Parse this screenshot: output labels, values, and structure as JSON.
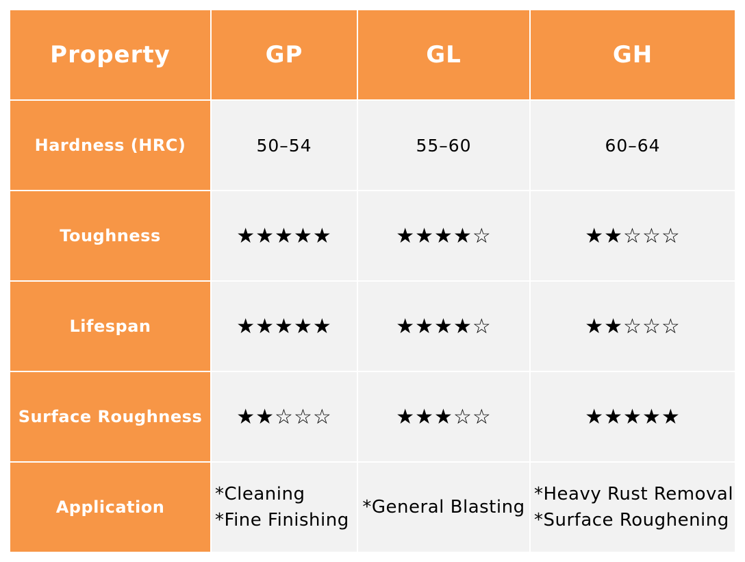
{
  "header": {
    "property": "Property",
    "columns": [
      "GP",
      "GL",
      "GH"
    ]
  },
  "rows": {
    "hardness": {
      "label": "Hardness (HRC)",
      "values": [
        "50–54",
        "55–60",
        "60–64"
      ]
    },
    "toughness": {
      "label": "Toughness",
      "ratings": [
        5,
        4,
        2
      ]
    },
    "lifespan": {
      "label": "Lifespan",
      "ratings": [
        5,
        4,
        2
      ]
    },
    "roughness": {
      "label": "Surface Roughness",
      "ratings": [
        2,
        3,
        5
      ]
    },
    "application": {
      "label": "Application",
      "values": [
        [
          "*Cleaning",
          "*Fine Finishing"
        ],
        [
          "*General Blasting"
        ],
        [
          "*Heavy Rust Removal",
          "*Surface Roughening"
        ]
      ]
    }
  },
  "rating_max": 5,
  "colors": {
    "header_bg": "#F79646",
    "cell_bg": "#F2F2F2"
  }
}
